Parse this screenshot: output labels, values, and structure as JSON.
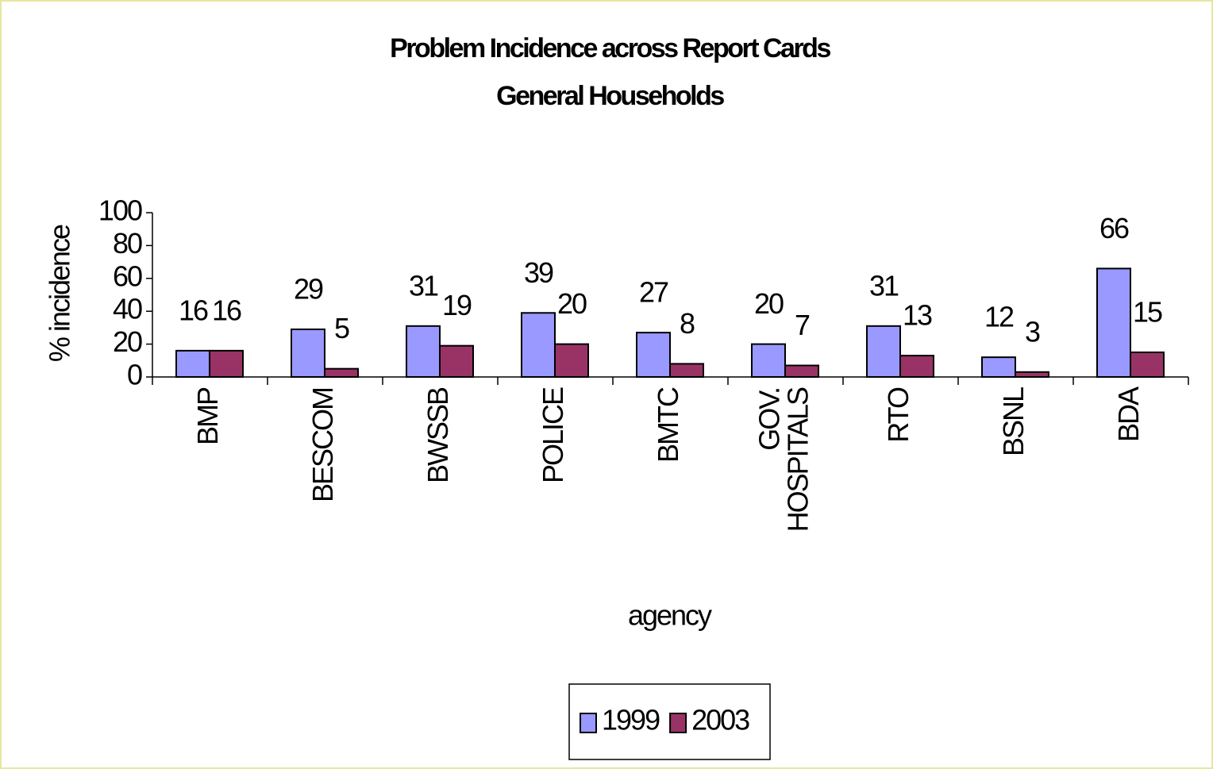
{
  "chart_data": {
    "type": "bar",
    "title": "Problem Incidence across Report Cards",
    "subtitle": "General Households",
    "x_label": "agency",
    "y_label": "% incidence",
    "categories": [
      "BMP",
      "BESCOM",
      "BWSSB",
      "POLICE",
      "BMTC",
      "GOV. HOSPITALS",
      "RTO",
      "BSNL",
      "BDA"
    ],
    "series": [
      {
        "name": "1999",
        "color": "#9999ff",
        "values": [
          16,
          29,
          31,
          39,
          27,
          20,
          31,
          12,
          66
        ]
      },
      {
        "name": "2003",
        "color": "#993366",
        "values": [
          16,
          5,
          19,
          20,
          8,
          7,
          13,
          3,
          15
        ]
      }
    ],
    "ylim": [
      0,
      100
    ],
    "yticks": [
      0,
      20,
      40,
      60,
      80,
      100
    ],
    "legend": "bottom"
  }
}
